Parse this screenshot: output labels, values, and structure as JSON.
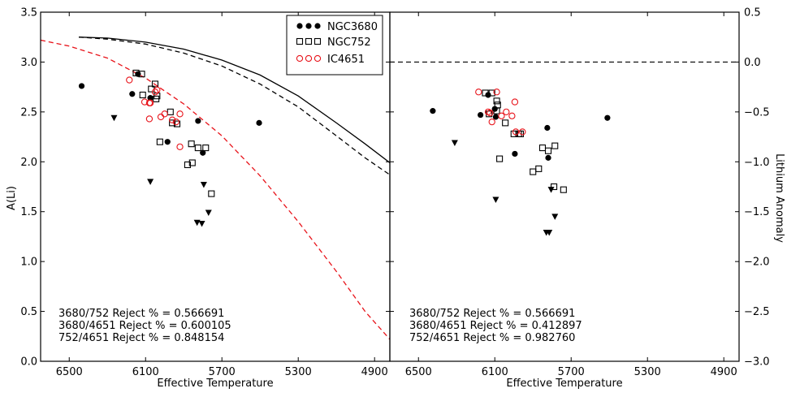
{
  "chart_data": {
    "type": "scatter",
    "shared": {
      "xlabel": "Effective Temperature",
      "xlim": [
        6650,
        4820
      ],
      "xticks": [
        6500,
        6100,
        5700,
        5300,
        4900
      ]
    },
    "left_panel": {
      "ylabel": "A(Li)",
      "ylim": [
        0.0,
        3.5
      ],
      "yticks": [
        "0.0",
        "0.5",
        "1.0",
        "1.5",
        "2.0",
        "2.5",
        "3.0",
        "3.5"
      ],
      "legend": [
        {
          "label": "NGC3680",
          "marker": "filled-circle",
          "color": "#000000"
        },
        {
          "label": "NGC752",
          "marker": "open-square",
          "color": "#000000"
        },
        {
          "label": "IC4651",
          "marker": "open-circle",
          "color": "#e8141b"
        }
      ],
      "series": [
        {
          "name": "NGC3680",
          "marker": "filled-circle",
          "x": [
            6435,
            6170,
            6140,
            6075,
            5985,
            5825,
            5800,
            5505
          ],
          "y": [
            2.76,
            2.68,
            2.88,
            2.64,
            2.2,
            2.41,
            2.09,
            2.39
          ]
        },
        {
          "name": "NGC3680 upper limits",
          "marker": "down-triangle",
          "x": [
            6265,
            6075,
            5830,
            5805,
            5795,
            5770
          ],
          "y": [
            2.44,
            1.8,
            1.39,
            1.38,
            1.77,
            1.49
          ]
        },
        {
          "name": "NGC752",
          "marker": "open-square",
          "x": [
            6150,
            6120,
            6115,
            6070,
            6050,
            6045,
            6040,
            6025,
            5970,
            5960,
            5935,
            5880,
            5860,
            5855,
            5825,
            5785,
            5755
          ],
          "y": [
            2.89,
            2.88,
            2.67,
            2.73,
            2.78,
            2.63,
            2.66,
            2.2,
            2.5,
            2.39,
            2.38,
            1.97,
            2.18,
            1.99,
            2.14,
            2.14,
            1.68
          ]
        },
        {
          "name": "IC4651",
          "marker": "open-circle",
          "x": [
            6185,
            6105,
            6080,
            6080,
            6075,
            6050,
            6040,
            6020,
            6000,
            5960,
            5940,
            5920,
            5920
          ],
          "y": [
            2.82,
            2.6,
            2.59,
            2.43,
            2.59,
            2.7,
            2.72,
            2.45,
            2.48,
            2.42,
            2.4,
            2.48,
            2.15
          ]
        }
      ],
      "curves": [
        {
          "name": "solid-black",
          "style": "solid",
          "color": "#000000",
          "x": [
            6450,
            6300,
            6100,
            5900,
            5700,
            5500,
            5300,
            5100,
            4950,
            4820
          ],
          "y": [
            3.25,
            3.24,
            3.2,
            3.13,
            3.02,
            2.87,
            2.66,
            2.39,
            2.18,
            1.99
          ]
        },
        {
          "name": "dashed-black",
          "style": "dashed",
          "color": "#000000",
          "x": [
            6450,
            6300,
            6100,
            5900,
            5700,
            5500,
            5300,
            5100,
            4950,
            4820
          ],
          "y": [
            3.25,
            3.23,
            3.18,
            3.09,
            2.96,
            2.78,
            2.55,
            2.26,
            2.04,
            1.87
          ]
        },
        {
          "name": "dashed-red",
          "style": "dashed",
          "color": "#e8141b",
          "x": [
            6650,
            6500,
            6300,
            6100,
            5900,
            5700,
            5500,
            5300,
            5100,
            4950,
            4820
          ],
          "y": [
            3.22,
            3.16,
            3.04,
            2.84,
            2.58,
            2.26,
            1.86,
            1.4,
            0.9,
            0.5,
            0.22
          ]
        }
      ],
      "annotations": [
        "3680/752 Reject % = 0.566691",
        "3680/4651 Reject % = 0.600105",
        "752/4651 Reject % = 0.848154"
      ]
    },
    "right_panel": {
      "ylabel": "Lithium Anomaly",
      "ylim": [
        -3.0,
        0.5
      ],
      "yticks": [
        "−3.0",
        "−2.5",
        "−2.0",
        "−1.5",
        "−1.0",
        "−0.5",
        "0.0",
        "0.5"
      ],
      "reference_line": {
        "y": 0.0,
        "style": "dashed",
        "color": "#000000"
      },
      "series": [
        {
          "name": "NGC3680",
          "marker": "filled-circle",
          "x": [
            6425,
            6175,
            6135,
            6100,
            6095,
            5995,
            5825,
            5820,
            5510
          ],
          "y": [
            -0.49,
            -0.53,
            -0.33,
            -0.47,
            -0.55,
            -0.92,
            -0.66,
            -0.96,
            -0.56
          ]
        },
        {
          "name": "NGC3680 upper limits",
          "marker": "down-triangle",
          "x": [
            6310,
            6095,
            5830,
            5815,
            5805,
            5785
          ],
          "y": [
            -0.81,
            -1.38,
            -1.71,
            -1.71,
            -1.28,
            -1.55
          ]
        },
        {
          "name": "NGC752",
          "marker": "open-square",
          "x": [
            6150,
            6115,
            6090,
            6085,
            6090,
            6130,
            6075,
            6045,
            6000,
            5975,
            5965,
            5900,
            5870,
            5850,
            5820,
            5785,
            5740,
            5790
          ],
          "y": [
            -0.31,
            -0.31,
            -0.49,
            -0.43,
            -0.39,
            -0.52,
            -0.97,
            -0.61,
            -0.72,
            -0.72,
            -0.72,
            -1.1,
            -1.07,
            -0.86,
            -0.89,
            -0.84,
            -1.28,
            -1.25
          ]
        },
        {
          "name": "IC4651",
          "marker": "open-circle",
          "x": [
            6185,
            6135,
            6125,
            6115,
            6090,
            6065,
            6040,
            6010,
            5990,
            5995,
            5955
          ],
          "y": [
            -0.3,
            -0.5,
            -0.51,
            -0.6,
            -0.3,
            -0.54,
            -0.5,
            -0.54,
            -0.7,
            -0.4,
            -0.7
          ]
        }
      ],
      "annotations": [
        "3680/752 Reject % = 0.566691",
        "3680/4651 Reject % = 0.412897",
        "752/4651 Reject % = 0.982760"
      ]
    }
  }
}
